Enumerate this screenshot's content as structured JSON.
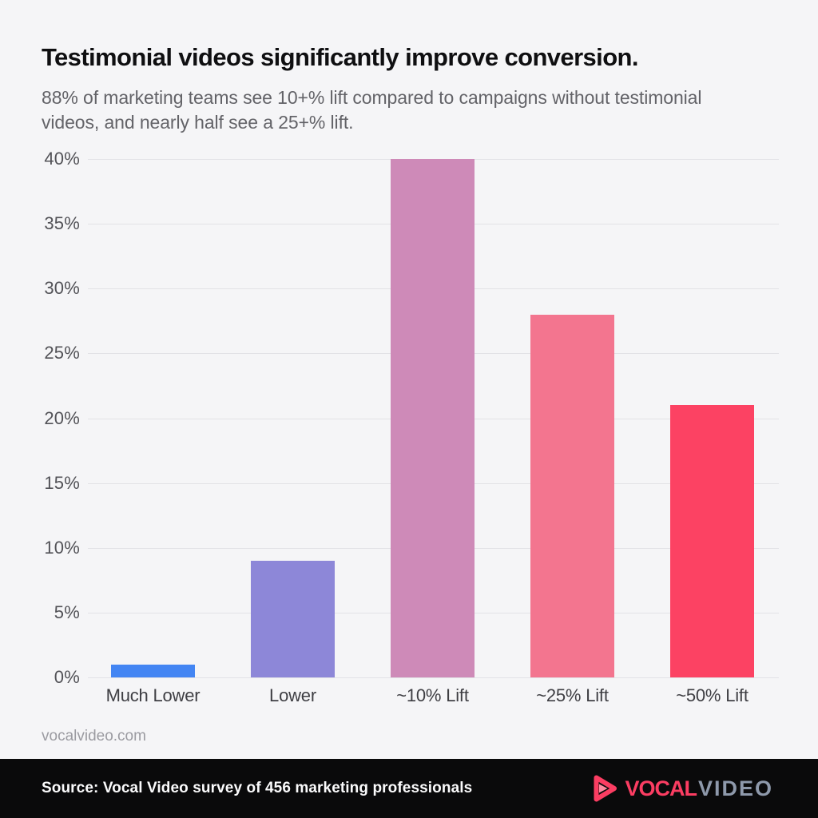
{
  "chart_data": {
    "type": "bar",
    "title": "Testimonial videos significantly improve conversion.",
    "subtitle": "88% of marketing teams see 10+% lift compared to campaigns without testimonial videos, and nearly half see a 25+% lift.",
    "categories": [
      "Much Lower",
      "Lower",
      "~10% Lift",
      "~25% Lift",
      "~50% Lift"
    ],
    "values": [
      1,
      9,
      40,
      28,
      21
    ],
    "bar_colors": [
      "#4385f3",
      "#8d87d8",
      "#ce8ab8",
      "#f3758f",
      "#fc4263"
    ],
    "xlabel": "",
    "ylabel": "",
    "ylim": [
      0,
      40
    ],
    "ytick_step": 5,
    "y_tick_labels": [
      "0%",
      "5%",
      "10%",
      "15%",
      "20%",
      "25%",
      "30%",
      "35%",
      "40%"
    ],
    "grid": true,
    "legend": "none"
  },
  "footer": {
    "website": "vocalvideo.com",
    "source": "Source: Vocal Video survey of 456 marketing professionals",
    "logo": {
      "icon": "play-icon",
      "brand_first": "VOCAL",
      "brand_second": "VIDEO",
      "accent_color": "#fb3d62",
      "secondary_color": "#8e99ab"
    }
  },
  "colors": {
    "background": "#f5f5f7",
    "gridline": "#e2e2e6",
    "footer_background": "#0a0a0b",
    "title_text": "#0f0f11",
    "subtitle_text": "#636368"
  }
}
